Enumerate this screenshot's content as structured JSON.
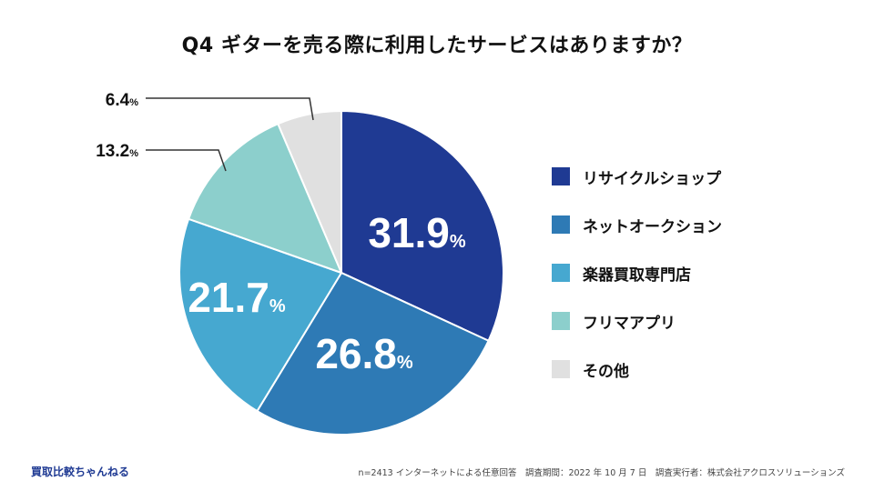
{
  "title": "Q4 ギターを売る際に利用したサービスはありますか？",
  "chart_data": {
    "type": "pie",
    "title": "Q4 ギターを売る際に利用したサービスはありますか？",
    "labels": [
      "リサイクルショップ",
      "ネットオークション",
      "楽器買取専門店",
      "フリマアプリ",
      "その他"
    ],
    "values": [
      31.9,
      26.8,
      21.7,
      13.2,
      6.4
    ],
    "value_labels": [
      "31.9",
      "26.8",
      "21.7",
      "13.2",
      "6.4"
    ],
    "unit": "%",
    "colors": [
      "#1f3a93",
      "#2e7ab5",
      "#46a8d0",
      "#8ccfcc",
      "#e0e0e0"
    ],
    "start_angle": "12 o'clock",
    "direction": "clockwise",
    "legend_position": "right"
  },
  "legend": [
    {
      "label": "リサイクルショップ",
      "color": "#1f3a93"
    },
    {
      "label": "ネットオークション",
      "color": "#2e7ab5"
    },
    {
      "label": "楽器買取専門店",
      "color": "#46a8d0"
    },
    {
      "label": "フリマアプリ",
      "color": "#8ccfcc"
    },
    {
      "label": "その他",
      "color": "#e0e0e0"
    }
  ],
  "footer": {
    "brand": "買取比較ちゃんねる",
    "note": "n=2413 インターネットによる任意回答　調査期間：2022 年 10 月 7 日　調査実行者：株式会社アクロスソリューションズ"
  }
}
